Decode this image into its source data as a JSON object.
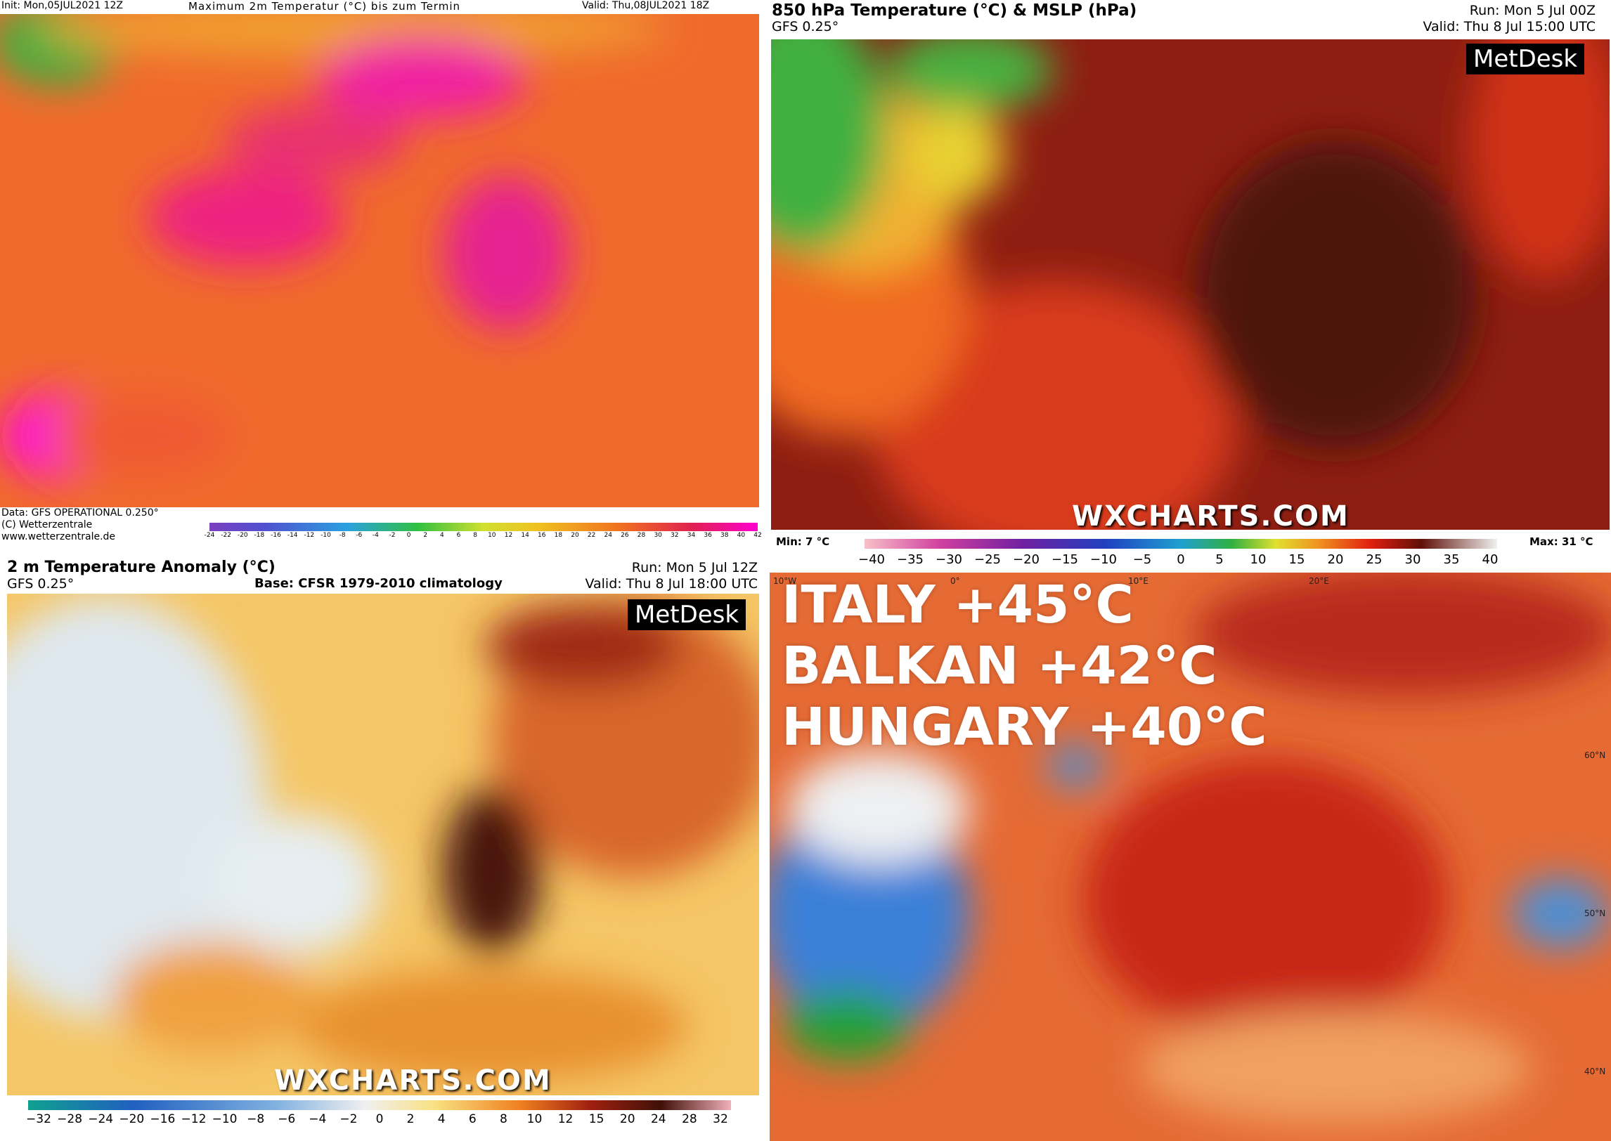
{
  "panels": [
    {
      "header": {
        "left": "Init: Mon,05JUL2021 12Z",
        "center": "Maximum 2m Temperatur (°C) bis zum Termin",
        "right": "Valid: Thu,08JUL2021 18Z"
      },
      "footer": [
        "Data: GFS OPERATIONAL 0.250°",
        "(C) Wetterzentrale",
        "www.wetterzentrale.de"
      ],
      "colorbar": [
        "-24",
        "-22",
        "-20",
        "-18",
        "-16",
        "-14",
        "-12",
        "-10",
        "-8",
        "-6",
        "-4",
        "-2",
        "0",
        "2",
        "4",
        "6",
        "8",
        "10",
        "12",
        "14",
        "16",
        "18",
        "20",
        "22",
        "24",
        "26",
        "28",
        "30",
        "32",
        "34",
        "36",
        "38",
        "40",
        "42"
      ]
    },
    {
      "title": "850 hPa Temperature (°C) & MSLP (hPa)",
      "subtitle": "GFS 0.25°",
      "run": "Run: Mon 5 Jul 00Z",
      "valid": "Valid: Thu 8 Jul 15:00 UTC",
      "logo": "MetDesk",
      "watermark": "WXCHARTS.COM",
      "min": "Min: 7 °C",
      "max": "Max: 31 °C",
      "colorbar": [
        "−40",
        "−35",
        "−30",
        "−25",
        "−20",
        "−15",
        "−10",
        "−5",
        "0",
        "5",
        "10",
        "15",
        "20",
        "25",
        "30",
        "35",
        "40"
      ]
    },
    {
      "title": "2 m Temperature Anomaly (°C)",
      "subtitle": "GFS 0.25°",
      "base": "Base: CFSR 1979-2010 climatology",
      "run": "Run: Mon 5 Jul 12Z",
      "valid": "Valid: Thu 8 Jul 18:00 UTC",
      "logo": "MetDesk",
      "watermark": "WXCHARTS.COM",
      "colorbar": [
        "−32",
        "−28",
        "−24",
        "−20",
        "−16",
        "−12",
        "−10",
        "−8",
        "−6",
        "−4",
        "−2",
        "0",
        "2",
        "4",
        "6",
        "8",
        "10",
        "12",
        "15",
        "20",
        "24",
        "28",
        "32"
      ]
    },
    {
      "headlines": [
        "ITALY +45°C",
        "BALKAN +42°C",
        "HUNGARY +40°C"
      ],
      "map_labels": [
        "10°W",
        "0°",
        "10°E",
        "20°E",
        "60°N",
        "50°N",
        "40°N"
      ]
    }
  ]
}
